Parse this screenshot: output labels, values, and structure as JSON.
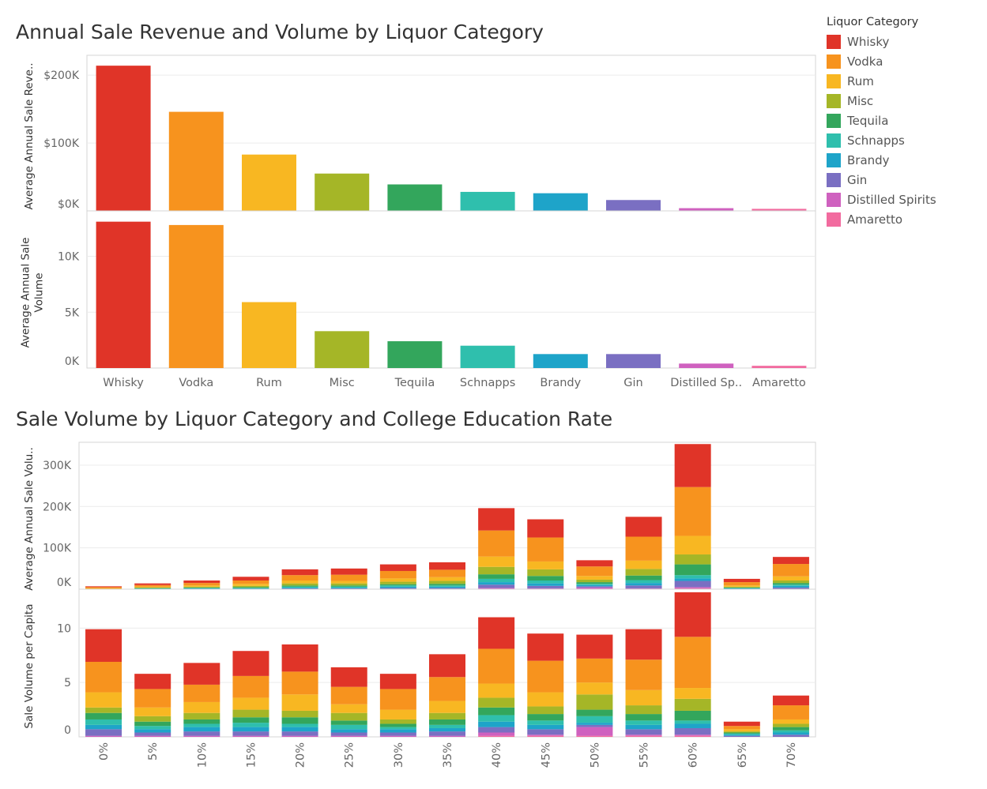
{
  "chart1_title": "Annual Sale Revenue and Volume by Liquor Category",
  "chart2_title": "Sale Volume by Liquor Category and College Education Rate",
  "legend": {
    "title": "Liquor Category",
    "items": [
      {
        "label": "Whisky",
        "color": "#e03428"
      },
      {
        "label": "Vodka",
        "color": "#f7931e"
      },
      {
        "label": "Rum",
        "color": "#f8b722"
      },
      {
        "label": "Misc",
        "color": "#a5b627"
      },
      {
        "label": "Tequila",
        "color": "#33a65c"
      },
      {
        "label": "Schnapps",
        "color": "#2fbfad"
      },
      {
        "label": "Brandy",
        "color": "#1ea4c9"
      },
      {
        "label": "Gin",
        "color": "#7a6fc2"
      },
      {
        "label": "Distilled Spirits",
        "color": "#cf61bf"
      },
      {
        "label": "Amaretto",
        "color": "#f26b9f"
      }
    ]
  },
  "chart_data": [
    {
      "type": "bar",
      "title": "Annual Sale Revenue and Volume by Liquor Category",
      "categories": [
        "Whisky",
        "Vodka",
        "Rum",
        "Misc",
        "Tequila",
        "Schnapps",
        "Brandy",
        "Gin",
        "Distilled Sp..",
        "Amaretto"
      ],
      "panels": [
        {
          "ylabel": "Average Annual Sale Reve..",
          "ylim": [
            0,
            220000
          ],
          "ticks": [
            0,
            100000,
            200000
          ],
          "tick_labels": [
            "$0K",
            "$100K",
            "$200K"
          ],
          "values": [
            214000,
            146000,
            83000,
            55000,
            39000,
            28000,
            26000,
            16000,
            4000,
            3000
          ]
        },
        {
          "ylabel": "Average Annual Sale Volume",
          "ylim": [
            0,
            13500
          ],
          "ticks": [
            0,
            5000,
            10000
          ],
          "tick_labels": [
            "0K",
            "5K",
            "10K"
          ],
          "values": [
            13100,
            12800,
            5900,
            3300,
            2400,
            2000,
            1250,
            1250,
            400,
            200
          ]
        }
      ],
      "grid": true
    },
    {
      "type": "bar",
      "stacked": true,
      "title": "Sale Volume by Liquor Category and College Education Rate",
      "categories": [
        "0%",
        "5%",
        "10%",
        "15%",
        "20%",
        "25%",
        "30%",
        "35%",
        "40%",
        "45%",
        "50%",
        "55%",
        "60%",
        "65%",
        "70%"
      ],
      "series_order": [
        "Amaretto",
        "Distilled Spirits",
        "Gin",
        "Brandy",
        "Schnapps",
        "Tequila",
        "Misc",
        "Rum",
        "Vodka",
        "Whisky"
      ],
      "panels": [
        {
          "ylabel": "Average Annual Sale Volu..",
          "ylim": [
            0,
            340000
          ],
          "ticks": [
            0,
            100000,
            200000,
            300000
          ],
          "tick_labels": [
            "0K",
            "100K",
            "200K",
            "300K"
          ],
          "series": [
            {
              "name": "Amaretto",
              "values": [
                0,
                0,
                0,
                0,
                0,
                0,
                0,
                0,
                1000,
                1000,
                1000,
                1000,
                2000,
                0,
                0
              ]
            },
            {
              "name": "Distilled Spirits",
              "values": [
                0,
                0,
                0,
                0,
                0,
                0,
                0,
                0,
                2000,
                1000,
                3000,
                1000,
                3000,
                0,
                0
              ]
            },
            {
              "name": "Gin",
              "values": [
                0,
                500,
                1000,
                1000,
                2000,
                2000,
                3000,
                3000,
                8000,
                6000,
                3000,
                7000,
                15000,
                1000,
                4000
              ]
            },
            {
              "name": "Brandy",
              "values": [
                0,
                500,
                1000,
                1000,
                2000,
                2000,
                3000,
                3000,
                6000,
                6000,
                3000,
                6000,
                6000,
                1000,
                4000
              ]
            },
            {
              "name": "Schnapps",
              "values": [
                0,
                1000,
                1000,
                1000,
                2000,
                2000,
                3000,
                3000,
                8000,
                7000,
                3000,
                7000,
                8000,
                1000,
                3000
              ]
            },
            {
              "name": "Tequila",
              "values": [
                0,
                1000,
                1000,
                2000,
                3000,
                3000,
                3000,
                4000,
                11000,
                11000,
                4000,
                11000,
                26000,
                1000,
                4000
              ]
            },
            {
              "name": "Misc",
              "values": [
                1000,
                1000,
                2000,
                3000,
                5000,
                5000,
                6000,
                7000,
                18000,
                16000,
                6000,
                16000,
                24000,
                2000,
                6000
              ]
            },
            {
              "name": "Rum",
              "values": [
                1000,
                2000,
                3000,
                5000,
                7000,
                6000,
                8000,
                9000,
                25000,
                19000,
                9000,
                20000,
                45000,
                3000,
                10000
              ]
            },
            {
              "name": "Vodka",
              "values": [
                3000,
                4000,
                6000,
                8000,
                13000,
                15000,
                18000,
                18000,
                63000,
                58000,
                23000,
                58000,
                118000,
                8000,
                30000
              ]
            },
            {
              "name": "Whisky",
              "values": [
                2000,
                4000,
                6000,
                9000,
                14000,
                15000,
                16000,
                18000,
                54000,
                44000,
                15000,
                48000,
                104000,
                8000,
                17000
              ]
            }
          ]
        },
        {
          "ylabel": "Sale Volume per Capita",
          "ylim": [
            0,
            13
          ],
          "ticks": [
            0,
            5,
            10
          ],
          "tick_labels": [
            "0",
            "5",
            "10"
          ],
          "series": [
            {
              "name": "Amaretto",
              "values": [
                0,
                0,
                0,
                0,
                0,
                0,
                0,
                0,
                0.1,
                0.1,
                0.1,
                0.1,
                0.1,
                0,
                0
              ]
            },
            {
              "name": "Distilled Spirits",
              "values": [
                0.1,
                0.1,
                0.1,
                0.1,
                0.1,
                0.1,
                0.1,
                0.1,
                0.3,
                0.1,
                0.8,
                0.1,
                0.1,
                0,
                0
              ]
            },
            {
              "name": "Gin",
              "values": [
                0.6,
                0.3,
                0.4,
                0.4,
                0.4,
                0.3,
                0.3,
                0.4,
                0.5,
                0.5,
                0.2,
                0.5,
                0.6,
                0.1,
                0.2
              ]
            },
            {
              "name": "Brandy",
              "values": [
                0.4,
                0.3,
                0.4,
                0.4,
                0.4,
                0.3,
                0.3,
                0.3,
                0.5,
                0.4,
                0.2,
                0.4,
                0.4,
                0.1,
                0.2
              ]
            },
            {
              "name": "Schnapps",
              "values": [
                0.5,
                0.3,
                0.3,
                0.4,
                0.3,
                0.4,
                0.2,
                0.3,
                0.6,
                0.4,
                0.6,
                0.4,
                0.3,
                0.1,
                0.2
              ]
            },
            {
              "name": "Tequila",
              "values": [
                0.6,
                0.4,
                0.4,
                0.5,
                0.6,
                0.4,
                0.3,
                0.5,
                0.7,
                0.6,
                0.6,
                0.6,
                0.9,
                0.1,
                0.3
              ]
            },
            {
              "name": "Misc",
              "values": [
                0.5,
                0.5,
                0.6,
                0.7,
                0.6,
                0.7,
                0.4,
                0.6,
                0.9,
                0.7,
                1.4,
                0.8,
                1.1,
                0.1,
                0.3
              ]
            },
            {
              "name": "Rum",
              "values": [
                1.4,
                0.8,
                1.0,
                1.1,
                1.5,
                0.8,
                0.9,
                1.1,
                1.3,
                1.3,
                1.1,
                1.4,
                1.0,
                0.2,
                0.4
              ]
            },
            {
              "name": "Vodka",
              "values": [
                2.8,
                1.7,
                1.6,
                2.0,
                2.1,
                1.6,
                1.9,
                2.2,
                3.2,
                2.9,
                2.2,
                2.8,
                4.7,
                0.3,
                1.3
              ]
            },
            {
              "name": "Whisky",
              "values": [
                3.0,
                1.4,
                2.0,
                2.3,
                2.5,
                1.8,
                1.4,
                2.1,
                2.9,
                2.5,
                2.2,
                2.8,
                4.1,
                0.4,
                0.9
              ]
            }
          ]
        }
      ],
      "grid": true
    }
  ]
}
